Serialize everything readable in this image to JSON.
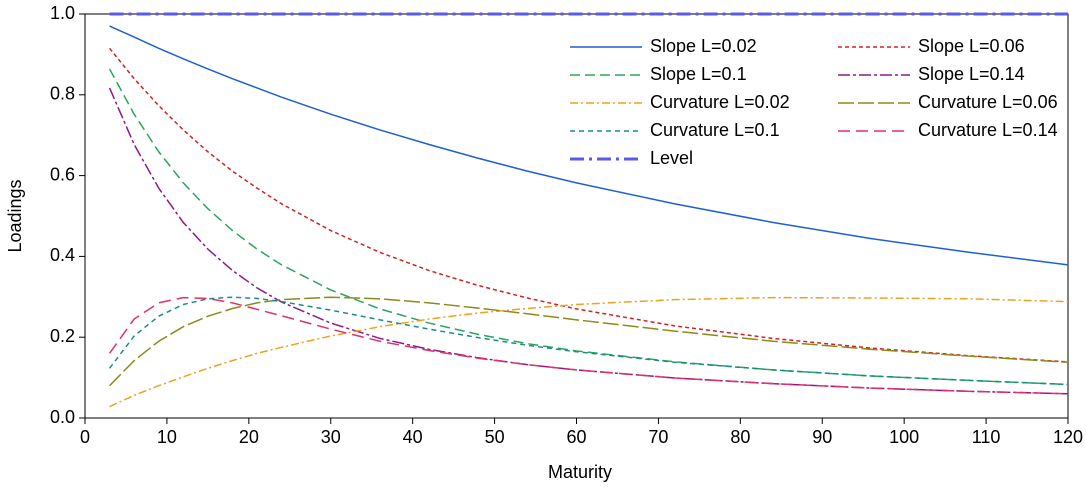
{
  "chart_data": {
    "type": "line",
    "x_label": "Maturity",
    "y_label": "Loadings",
    "x": [
      3,
      6,
      9,
      12,
      15,
      18,
      21,
      24,
      30,
      36,
      42,
      48,
      54,
      60,
      72,
      84,
      96,
      108,
      120
    ],
    "xlim": [
      0,
      120
    ],
    "xticks": [
      0,
      10,
      20,
      30,
      40,
      50,
      60,
      70,
      80,
      90,
      100,
      110,
      120
    ],
    "ylim": [
      0,
      1
    ],
    "yticks": [
      {
        "value": 0,
        "label": "0.0"
      },
      0.2,
      0.4,
      0.6,
      0.8,
      {
        "value": 1,
        "label": "1.0"
      }
    ],
    "legend": "upper right",
    "series": [
      {
        "name": "Slope L=0.02",
        "color": "#1f5fd6",
        "dash": "none",
        "values": [
          0.97,
          0.943,
          0.915,
          0.889,
          0.864,
          0.84,
          0.817,
          0.794,
          0.752,
          0.713,
          0.677,
          0.643,
          0.611,
          0.582,
          0.53,
          0.484,
          0.444,
          0.41,
          0.379
        ]
      },
      {
        "name": "Slope L=0.06",
        "color": "#d62020",
        "dash": "4 3",
        "values": [
          0.915,
          0.84,
          0.773,
          0.713,
          0.659,
          0.611,
          0.569,
          0.53,
          0.464,
          0.41,
          0.365,
          0.328,
          0.297,
          0.27,
          0.228,
          0.197,
          0.173,
          0.154,
          0.139
        ]
      },
      {
        "name": "Slope L=0.1",
        "color": "#2aa55a",
        "dash": "10 5",
        "values": [
          0.864,
          0.752,
          0.659,
          0.582,
          0.518,
          0.464,
          0.418,
          0.379,
          0.317,
          0.27,
          0.235,
          0.207,
          0.184,
          0.166,
          0.139,
          0.119,
          0.104,
          0.093,
          0.083
        ]
      },
      {
        "name": "Slope L=0.14",
        "color": "#8b1a8b",
        "dash": "12 3 3 3",
        "values": [
          0.817,
          0.677,
          0.569,
          0.484,
          0.418,
          0.365,
          0.322,
          0.287,
          0.235,
          0.197,
          0.17,
          0.149,
          0.132,
          0.119,
          0.099,
          0.085,
          0.074,
          0.066,
          0.06
        ]
      },
      {
        "name": "Curvature L=0.02",
        "color": "#f0a020",
        "dash": "8 3 2 3",
        "values": [
          0.028,
          0.056,
          0.08,
          0.102,
          0.123,
          0.142,
          0.16,
          0.175,
          0.203,
          0.226,
          0.245,
          0.26,
          0.271,
          0.281,
          0.293,
          0.298,
          0.297,
          0.295,
          0.288
        ]
      },
      {
        "name": "Curvature L=0.06",
        "color": "#8b8b1a",
        "dash": "16 4",
        "values": [
          0.08,
          0.142,
          0.19,
          0.226,
          0.252,
          0.271,
          0.285,
          0.293,
          0.299,
          0.295,
          0.285,
          0.272,
          0.258,
          0.243,
          0.215,
          0.19,
          0.17,
          0.153,
          0.138
        ]
      },
      {
        "name": "Curvature L=0.1",
        "color": "#1a8b8b",
        "dash": "5 4",
        "values": [
          0.123,
          0.203,
          0.252,
          0.281,
          0.295,
          0.299,
          0.296,
          0.288,
          0.267,
          0.243,
          0.22,
          0.199,
          0.18,
          0.164,
          0.138,
          0.119,
          0.104,
          0.093,
          0.083
        ]
      },
      {
        "name": "Curvature L=0.14",
        "color": "#e0306a",
        "dash": "12 6",
        "values": [
          0.16,
          0.245,
          0.285,
          0.298,
          0.296,
          0.285,
          0.269,
          0.253,
          0.22,
          0.19,
          0.167,
          0.148,
          0.132,
          0.119,
          0.099,
          0.085,
          0.074,
          0.066,
          0.06
        ]
      },
      {
        "name": "Level",
        "color": "#5a5af0",
        "dash": "14 5 3 5",
        "width": 3,
        "values": [
          1,
          1,
          1,
          1,
          1,
          1,
          1,
          1,
          1,
          1,
          1,
          1,
          1,
          1,
          1,
          1,
          1,
          1,
          1
        ]
      }
    ]
  }
}
